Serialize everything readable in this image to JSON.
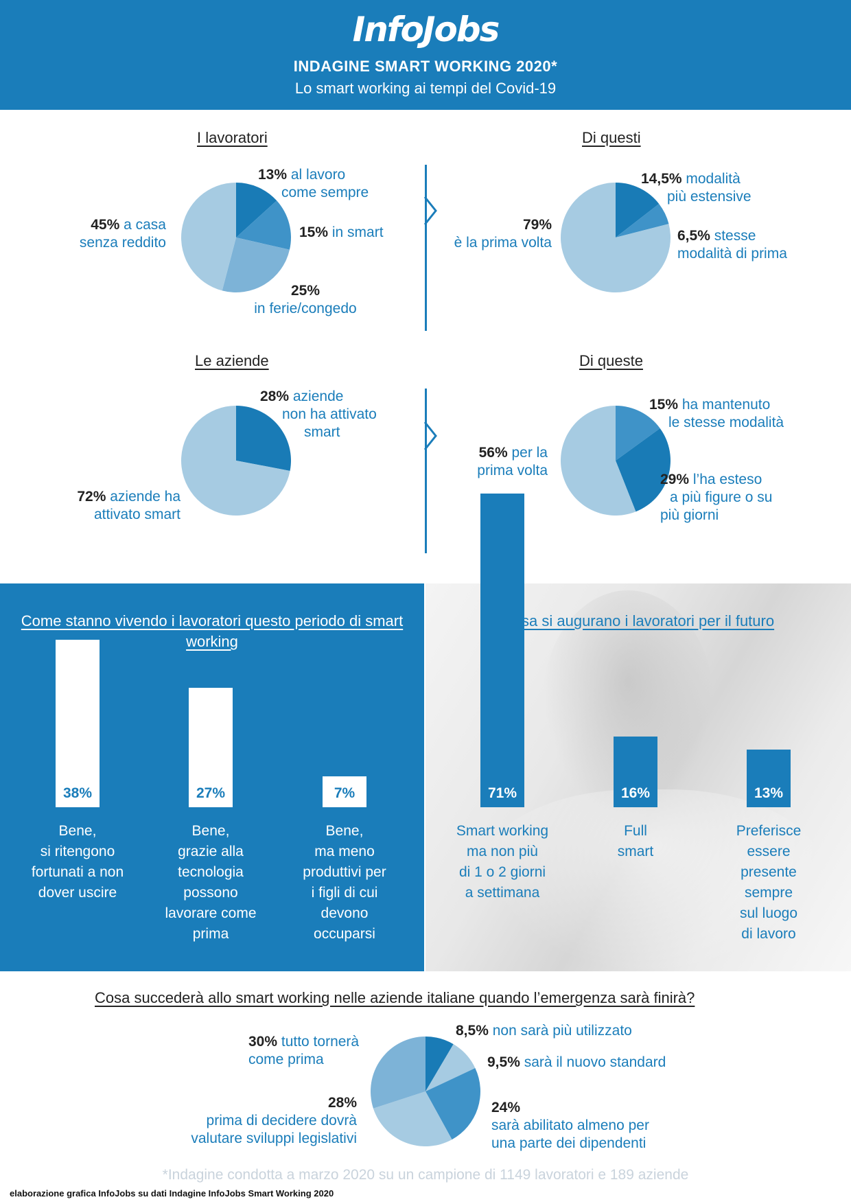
{
  "header": {
    "logo": "InfoJobs",
    "title": "INDAGINE SMART WORKING 2020*",
    "subtitle": "Lo smart working ai tempi del Covid-19"
  },
  "colors": {
    "brand": "#1a7dba",
    "pie_light": "#a6cbe2",
    "pie_mid": "#7db3d7",
    "pie_mid2": "#3f93c8",
    "pie_dark": "#1a7dba",
    "pie_darker": "#197bb6"
  },
  "sections": {
    "lavoratori": {
      "title": "I lavoratori",
      "labels": [
        {
          "pct": "13%",
          "text1": " al lavoro",
          "text2": "come sempre"
        },
        {
          "pct": "15%",
          "text1": " in smart",
          "text2": ""
        },
        {
          "pct": "25%",
          "text1": "",
          "text2": "in ferie/congedo"
        },
        {
          "pct": "45%",
          "text1": " a casa",
          "text2": "senza reddito"
        }
      ]
    },
    "questi": {
      "title": "Di questi",
      "labels": [
        {
          "pct": "14,5%",
          "text1": " modalità",
          "text2": "più estensive"
        },
        {
          "pct": "6,5%",
          "text1": " stesse",
          "text2": "modalità di prima"
        },
        {
          "pct": "79%",
          "text1": "",
          "text2": "è la prima volta"
        }
      ]
    },
    "aziende": {
      "title": "Le aziende",
      "labels": [
        {
          "pct": "28%",
          "text1": " aziende",
          "text2": "non ha attivato",
          "text3": "smart"
        },
        {
          "pct": "72%",
          "text1": " aziende ha",
          "text2": "attivato smart"
        }
      ]
    },
    "queste": {
      "title": "Di queste",
      "labels": [
        {
          "pct": "15%",
          "text1": " ha mantenuto",
          "text2": "le stesse modalità"
        },
        {
          "pct": "29%",
          "text1": " l’ha esteso",
          "text2": "a più figure o su",
          "text3": "più giorni"
        },
        {
          "pct": "56%",
          "text1": " per la",
          "text2": "prima volta"
        }
      ]
    },
    "futuro": {
      "title": "Cosa succederà allo smart working nelle aziende italiane quando l’emergenza sarà finirà?",
      "labels": [
        {
          "pct": "30%",
          "text1": " tutto tornerà",
          "text2": "come prima"
        },
        {
          "pct": "8,5%",
          "text1": " non sarà più utilizzato",
          "text2": ""
        },
        {
          "pct": "9,5%",
          "text1": " sarà il nuovo standard",
          "text2": ""
        },
        {
          "pct": "24%",
          "text1": "",
          "text2": "sarà abilitato almeno per",
          "text3": "una parte dei dipendenti"
        },
        {
          "pct": "28%",
          "text1": "",
          "text2": "prima di decidere dovrà",
          "text3": "valutare sviluppi legislativi"
        }
      ]
    }
  },
  "panels": {
    "left_title": "Come stanno vivendo i lavoratori questo periodo di smart working",
    "right_title": "Cosa si augurano i lavoratori per il futuro"
  },
  "chart_data": [
    {
      "type": "pie",
      "title": "I lavoratori",
      "slices": [
        {
          "label": "al lavoro come sempre",
          "value": 13
        },
        {
          "label": "in smart",
          "value": 15
        },
        {
          "label": "in ferie/congedo",
          "value": 25
        },
        {
          "label": "a casa senza reddito",
          "value": 45
        }
      ]
    },
    {
      "type": "pie",
      "title": "Di questi",
      "slices": [
        {
          "label": "modalità più estensive",
          "value": 14.5
        },
        {
          "label": "stesse modalità di prima",
          "value": 6.5
        },
        {
          "label": "è la prima volta",
          "value": 79
        }
      ]
    },
    {
      "type": "pie",
      "title": "Le aziende",
      "slices": [
        {
          "label": "aziende non ha attivato smart",
          "value": 28
        },
        {
          "label": "aziende ha attivato smart",
          "value": 72
        }
      ]
    },
    {
      "type": "pie",
      "title": "Di queste",
      "slices": [
        {
          "label": "ha mantenuto le stesse modalità",
          "value": 15
        },
        {
          "label": "l’ha esteso a più figure o su più giorni",
          "value": 29
        },
        {
          "label": "per la prima volta",
          "value": 56
        }
      ]
    },
    {
      "type": "bar",
      "title": "Come stanno vivendo i lavoratori questo periodo di smart working",
      "categories": [
        "Bene,\nsi ritengono\nfortunati a non\ndover uscire",
        "Bene,\ngrazie alla\ntecnologia\npossono\nlavorare come\nprima",
        "Bene,\nma meno\nproduttivi per\ni figli di cui\ndevono\noccuparsi"
      ],
      "values": [
        38,
        27,
        7
      ],
      "value_labels": [
        "38%",
        "27%",
        "7%"
      ]
    },
    {
      "type": "bar",
      "title": "Cosa si augurano i lavoratori per il futuro",
      "categories": [
        "Smart working\nma non più\ndi 1 o 2 giorni\na settimana",
        "Full\nsmart",
        "Preferisce\nessere\npresente\nsempre\nsul luogo\ndi lavoro"
      ],
      "values": [
        71,
        16,
        13
      ],
      "value_labels": [
        "71%",
        "16%",
        "13%"
      ]
    },
    {
      "type": "pie",
      "title": "Cosa succederà allo smart working nelle aziende italiane quando l’emergenza sarà finirà?",
      "slices": [
        {
          "label": "non sarà più utilizzato",
          "value": 8.5
        },
        {
          "label": "sarà il nuovo standard",
          "value": 9.5
        },
        {
          "label": "sarà abilitato almeno per una parte dei dipendenti",
          "value": 24
        },
        {
          "label": "prima di decidere dovrà valutare sviluppi legislativi",
          "value": 28
        },
        {
          "label": "tutto tornerà come prima",
          "value": 30
        }
      ]
    }
  ],
  "footer": {
    "note": "*Indagine condotta a marzo 2020 su un campione di 1149 lavoratori e 189 aziende",
    "credit": "elaborazione grafica InfoJobs su dati Indagine InfoJobs Smart Working 2020"
  }
}
